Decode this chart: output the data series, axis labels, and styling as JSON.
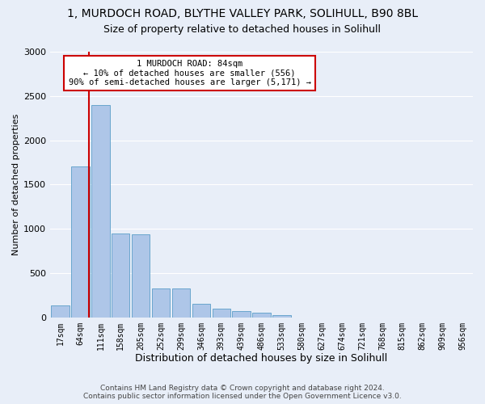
{
  "title_line1": "1, MURDOCH ROAD, BLYTHE VALLEY PARK, SOLIHULL, B90 8BL",
  "title_line2": "Size of property relative to detached houses in Solihull",
  "xlabel": "Distribution of detached houses by size in Solihull",
  "ylabel": "Number of detached properties",
  "bin_labels": [
    "17sqm",
    "64sqm",
    "111sqm",
    "158sqm",
    "205sqm",
    "252sqm",
    "299sqm",
    "346sqm",
    "393sqm",
    "439sqm",
    "486sqm",
    "533sqm",
    "580sqm",
    "627sqm",
    "674sqm",
    "721sqm",
    "768sqm",
    "815sqm",
    "862sqm",
    "909sqm",
    "956sqm"
  ],
  "bar_values": [
    130,
    1700,
    2400,
    950,
    940,
    330,
    330,
    150,
    95,
    70,
    55,
    25,
    0,
    0,
    0,
    0,
    0,
    0,
    0,
    0,
    0
  ],
  "bar_color": "#aec6e8",
  "bar_edge_color": "#5a9ec8",
  "vline_color": "#cc0000",
  "annotation_text": "1 MURDOCH ROAD: 84sqm\n← 10% of detached houses are smaller (556)\n90% of semi-detached houses are larger (5,171) →",
  "annotation_box_facecolor": "#ffffff",
  "annotation_box_edgecolor": "#cc0000",
  "ylim": [
    0,
    3000
  ],
  "yticks": [
    0,
    500,
    1000,
    1500,
    2000,
    2500,
    3000
  ],
  "footer_line1": "Contains HM Land Registry data © Crown copyright and database right 2024.",
  "footer_line2": "Contains public sector information licensed under the Open Government Licence v3.0.",
  "bg_color": "#e8eef8",
  "plot_bg_color": "#e8eef8",
  "grid_color": "#ffffff",
  "title1_fontsize": 10,
  "title2_fontsize": 9,
  "tick_label_fontsize": 7,
  "ylabel_fontsize": 8,
  "xlabel_fontsize": 9
}
